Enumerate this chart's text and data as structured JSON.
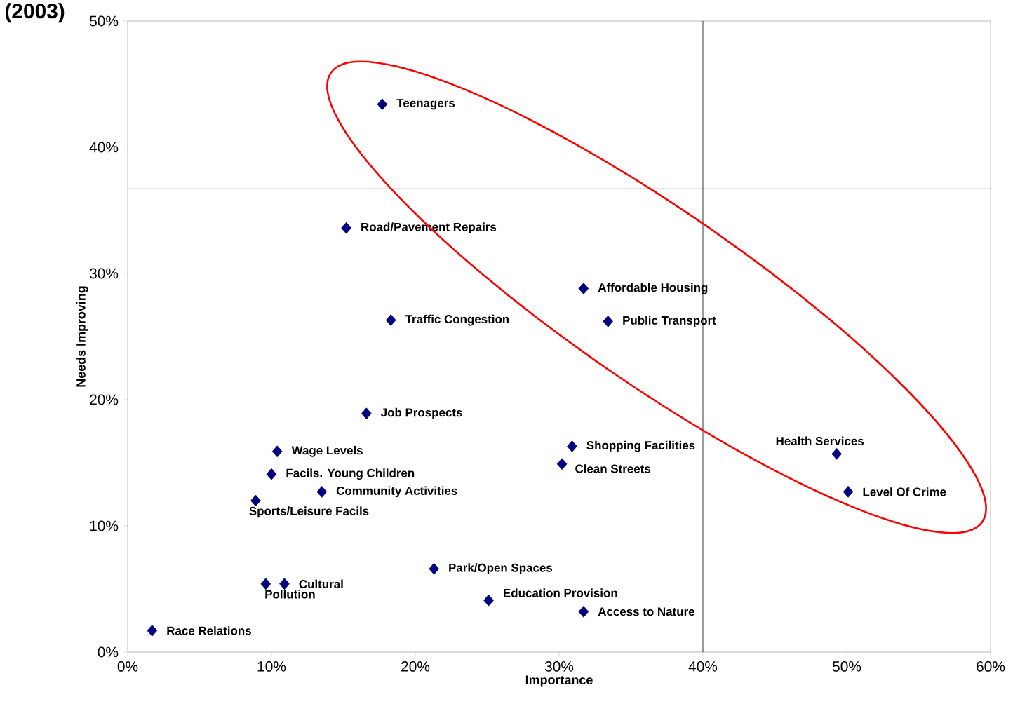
{
  "chart_data": {
    "type": "scatter",
    "title": "(2003)",
    "xlabel": "Importance",
    "ylabel": "Needs Improving",
    "xlim": [
      0,
      60
    ],
    "ylim": [
      0,
      50
    ],
    "xticks": [
      {
        "value": 0,
        "label": "0%"
      },
      {
        "value": 10,
        "label": "10%"
      },
      {
        "value": 20,
        "label": "20%"
      },
      {
        "value": 30,
        "label": "30%"
      },
      {
        "value": 40,
        "label": "40%"
      },
      {
        "value": 50,
        "label": "50%"
      },
      {
        "value": 60,
        "label": "60%"
      }
    ],
    "yticks": [
      {
        "value": 0,
        "label": "0%"
      },
      {
        "value": 10,
        "label": "10%"
      },
      {
        "value": 20,
        "label": "20%"
      },
      {
        "value": 30,
        "label": "30%"
      },
      {
        "value": 40,
        "label": "40%"
      },
      {
        "value": 50,
        "label": "50%"
      }
    ],
    "series": [
      {
        "color": "#000080",
        "x": [
          17.7,
          15.2,
          31.7,
          18.3,
          33.4,
          16.6,
          30.9,
          49.3,
          30.2,
          10.4,
          10.0,
          13.5,
          50.1,
          8.9,
          10.9,
          9.6,
          21.3,
          25.1,
          31.7,
          1.7
        ],
        "values": [
          43.4,
          33.6,
          28.8,
          26.3,
          26.2,
          18.9,
          16.3,
          15.7,
          14.9,
          15.9,
          14.1,
          12.7,
          12.7,
          12.0,
          5.4,
          5.4,
          6.6,
          4.1,
          3.2,
          1.7
        ]
      }
    ],
    "marker": "diamond",
    "ref_lines": [
      {
        "axis": "x",
        "value": 40,
        "color": "#000000"
      },
      {
        "axis": "y",
        "value": 36.7,
        "color": "#000000"
      }
    ],
    "annotations": [
      {
        "text": "Teenagers",
        "x": 17.7,
        "y": 43.4
      },
      {
        "text": "Road/Pavement Repairs",
        "x": 15.2,
        "y": 33.6
      },
      {
        "text": "Affordable Housing",
        "x": 31.7,
        "y": 28.8
      },
      {
        "text": "Traffic Congestion",
        "x": 18.3,
        "y": 26.3
      },
      {
        "text": "Public Transport",
        "x": 33.4,
        "y": 26.2
      },
      {
        "text": "Job Prospects",
        "x": 16.6,
        "y": 18.9
      },
      {
        "text": "Shopping Facilities",
        "x": 30.9,
        "y": 16.3
      },
      {
        "text": "Health Services",
        "x": 49.3,
        "y": 15.7
      },
      {
        "text": "Clean Streets",
        "x": 30.2,
        "y": 14.9
      },
      {
        "text": "Wage Levels",
        "x": 10.4,
        "y": 15.9
      },
      {
        "text": "Facils. Young Children",
        "x": 10.0,
        "y": 14.1
      },
      {
        "text": "Community Activities",
        "x": 13.5,
        "y": 12.7
      },
      {
        "text": "Level Of Crime",
        "x": 50.1,
        "y": 12.7
      },
      {
        "text": "Sports/Leisure Facils",
        "x": 8.9,
        "y": 12.0
      },
      {
        "text": "Cultural",
        "x": 10.9,
        "y": 5.4
      },
      {
        "text": "Pollution",
        "x": 9.6,
        "y": 5.4
      },
      {
        "text": "Park/Open Spaces",
        "x": 21.3,
        "y": 6.6
      },
      {
        "text": "Education Provision",
        "x": 25.1,
        "y": 4.1
      },
      {
        "text": "Access to Nature",
        "x": 31.7,
        "y": 3.2
      },
      {
        "text": "Race Relations",
        "x": 1.7,
        "y": 1.7
      }
    ]
  }
}
